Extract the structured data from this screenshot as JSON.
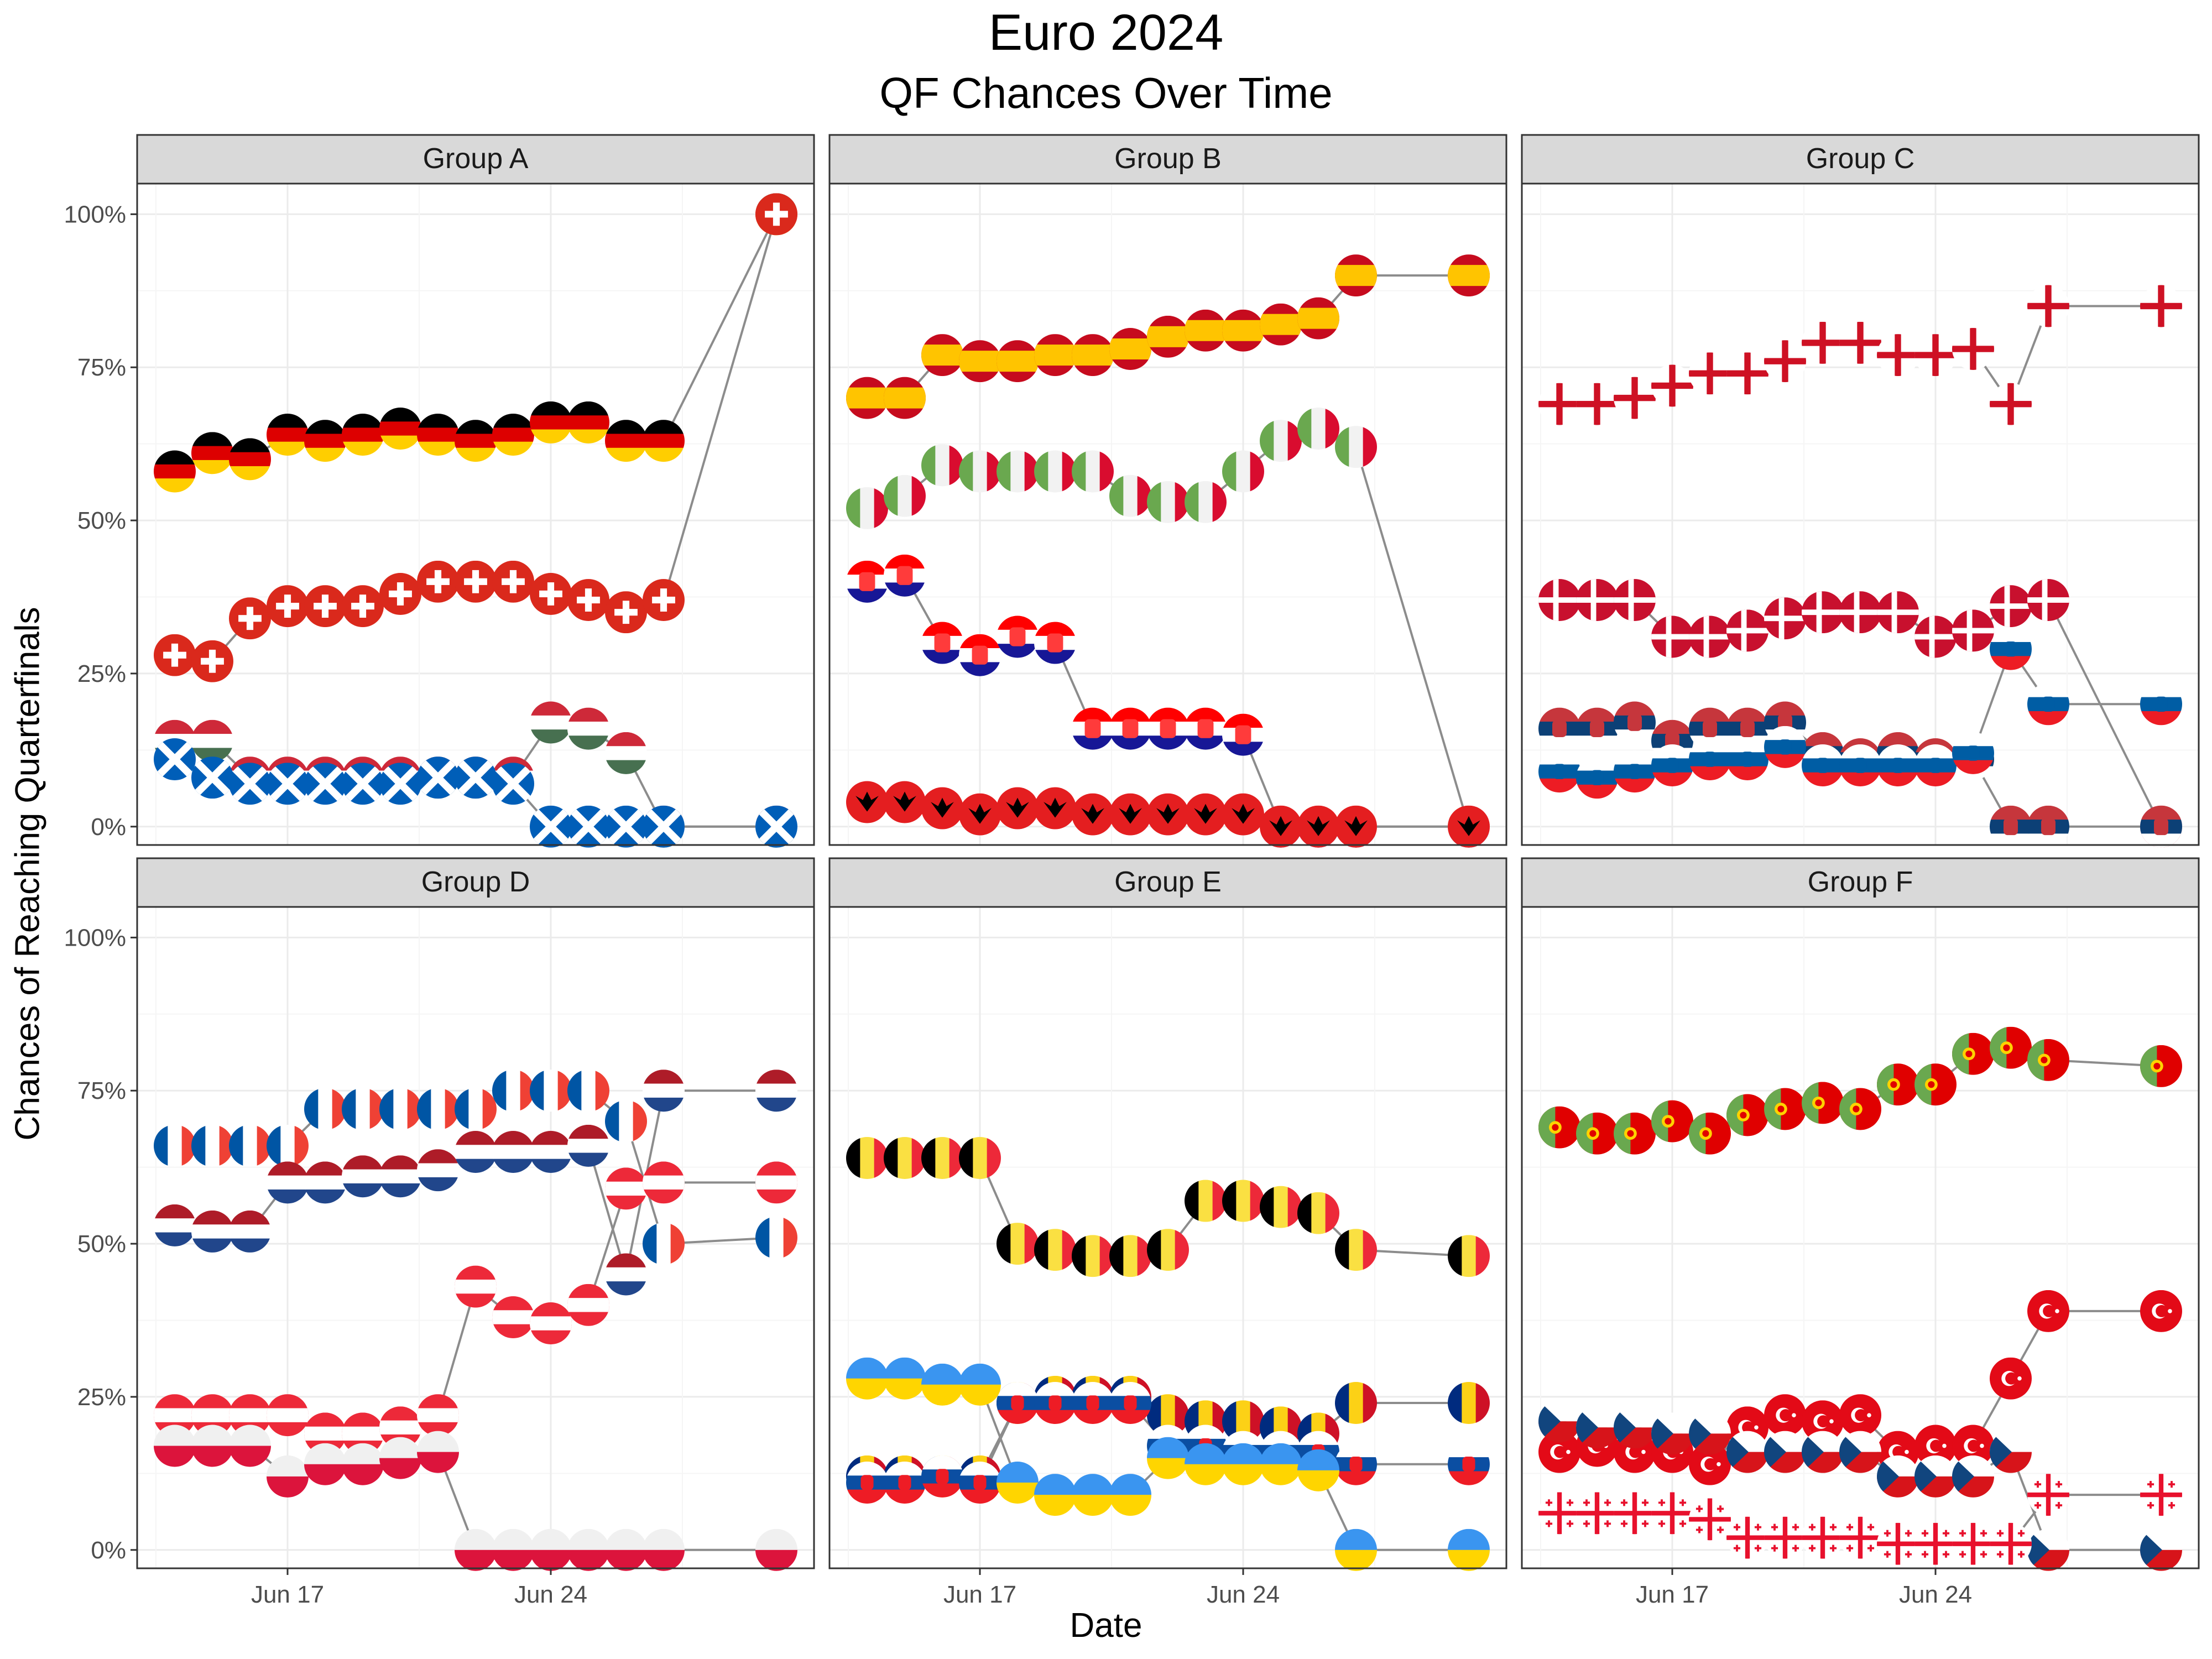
{
  "title": "Euro 2024",
  "subtitle": "QF Chances Over Time",
  "chart_data": {
    "type": "scatter",
    "title": "Euro 2024",
    "subtitle": "QF Chances Over Time",
    "xlabel": "Date",
    "ylabel": "Chances of Reaching Quarterfinals",
    "x_tick_labels": [
      "Jun 17",
      "Jun 24"
    ],
    "y_tick_labels": [
      "0%",
      "25%",
      "50%",
      "75%",
      "100%"
    ],
    "ylim": [
      -3,
      105
    ],
    "xlim": [
      "2024-06-13",
      "2024-07-01"
    ],
    "grid": true,
    "legend": "none",
    "dates": [
      "2024-06-14",
      "2024-06-15",
      "2024-06-16",
      "2024-06-17",
      "2024-06-18",
      "2024-06-19",
      "2024-06-20",
      "2024-06-21",
      "2024-06-22",
      "2024-06-23",
      "2024-06-24",
      "2024-06-25",
      "2024-06-26",
      "2024-06-27",
      "2024-06-30"
    ],
    "panels": [
      {
        "name": "Group A",
        "series": [
          {
            "team": "Germany",
            "flag": "germany",
            "values": [
              58,
              61,
              60,
              64,
              63,
              64,
              65,
              64,
              63,
              64,
              66,
              66,
              63,
              63,
              100
            ]
          },
          {
            "team": "Switzerland",
            "flag": "switzerland",
            "values": [
              28,
              27,
              34,
              36,
              36,
              36,
              38,
              40,
              40,
              40,
              38,
              37,
              35,
              37,
              100
            ]
          },
          {
            "team": "Hungary",
            "flag": "hungary",
            "values": [
              14,
              14,
              8,
              8,
              8,
              8,
              8,
              8,
              8,
              8,
              17,
              16,
              12,
              0,
              0
            ]
          },
          {
            "team": "Scotland",
            "flag": "scotland",
            "values": [
              11,
              8,
              7,
              7,
              7,
              7,
              7,
              8,
              8,
              7,
              0,
              0,
              0,
              0,
              0
            ]
          }
        ]
      },
      {
        "name": "Group B",
        "series": [
          {
            "team": "Spain",
            "flag": "spain",
            "values": [
              70,
              70,
              77,
              76,
              76,
              77,
              77,
              78,
              80,
              81,
              81,
              82,
              83,
              90,
              90
            ]
          },
          {
            "team": "Italy",
            "flag": "italy",
            "values": [
              52,
              54,
              59,
              58,
              58,
              58,
              58,
              54,
              53,
              53,
              58,
              63,
              65,
              62,
              0
            ]
          },
          {
            "team": "Croatia",
            "flag": "croatia",
            "values": [
              40,
              41,
              30,
              28,
              31,
              30,
              16,
              16,
              16,
              16,
              15,
              0,
              0,
              0,
              0
            ]
          },
          {
            "team": "Albania",
            "flag": "albania",
            "values": [
              4,
              4,
              3,
              2,
              3,
              3,
              2,
              2,
              2,
              2,
              2,
              0,
              0,
              0,
              0
            ]
          }
        ]
      },
      {
        "name": "Group C",
        "series": [
          {
            "team": "England",
            "flag": "england",
            "values": [
              69,
              69,
              70,
              72,
              74,
              74,
              76,
              79,
              79,
              77,
              77,
              78,
              69,
              85,
              85
            ]
          },
          {
            "team": "Denmark",
            "flag": "denmark",
            "values": [
              37,
              37,
              37,
              31,
              31,
              32,
              34,
              35,
              35,
              35,
              31,
              32,
              36,
              37,
              0
            ]
          },
          {
            "team": "Serbia",
            "flag": "serbia",
            "values": [
              16,
              16,
              17,
              14,
              16,
              16,
              17,
              12,
              11,
              12,
              11,
              11,
              0,
              0,
              0
            ]
          },
          {
            "team": "Slovenia",
            "flag": "slovenia",
            "values": [
              9,
              8,
              9,
              10,
              11,
              11,
              13,
              10,
              10,
              10,
              10,
              12,
              29,
              20,
              20
            ]
          }
        ]
      },
      {
        "name": "Group D",
        "series": [
          {
            "team": "France",
            "flag": "france",
            "values": [
              66,
              66,
              66,
              66,
              72,
              72,
              72,
              72,
              72,
              75,
              75,
              75,
              70,
              50,
              51
            ]
          },
          {
            "team": "Netherlands",
            "flag": "netherlands",
            "values": [
              53,
              52,
              52,
              60,
              60,
              61,
              61,
              62,
              65,
              65,
              65,
              66,
              45,
              75,
              75
            ]
          },
          {
            "team": "Austria",
            "flag": "austria",
            "values": [
              22,
              22,
              22,
              22,
              19,
              19,
              20,
              22,
              43,
              38,
              37,
              40,
              59,
              60,
              60
            ]
          },
          {
            "team": "Poland",
            "flag": "poland",
            "values": [
              17,
              17,
              17,
              12,
              14,
              14,
              15,
              16,
              0,
              0,
              0,
              0,
              0,
              0,
              0
            ]
          }
        ]
      },
      {
        "name": "Group E",
        "series": [
          {
            "team": "Belgium",
            "flag": "belgium",
            "values": [
              64,
              64,
              64,
              64,
              50,
              49,
              48,
              48,
              49,
              57,
              57,
              56,
              55,
              49,
              48
            ]
          },
          {
            "team": "Romania",
            "flag": "romania",
            "values": [
              12,
              12,
              12,
              12,
              24,
              25,
              25,
              25,
              22,
              21,
              21,
              20,
              19,
              24,
              24
            ]
          },
          {
            "team": "Slovakia",
            "flag": "slovakia",
            "values": [
              11,
              11,
              12,
              11,
              24,
              24,
              24,
              24,
              17,
              17,
              16,
              16,
              16,
              14,
              14
            ]
          },
          {
            "team": "Ukraine",
            "flag": "ukraine",
            "values": [
              28,
              28,
              27,
              27,
              11,
              9,
              9,
              9,
              15,
              14,
              14,
              14,
              13,
              0,
              0
            ]
          }
        ]
      },
      {
        "name": "Group F",
        "series": [
          {
            "team": "Portugal",
            "flag": "portugal",
            "values": [
              69,
              68,
              68,
              70,
              68,
              71,
              72,
              73,
              72,
              76,
              76,
              81,
              82,
              80,
              79
            ]
          },
          {
            "team": "Turkey",
            "flag": "turkey",
            "values": [
              16,
              17,
              16,
              16,
              14,
              20,
              22,
              21,
              22,
              16,
              17,
              17,
              28,
              39,
              39
            ]
          },
          {
            "team": "Czechia",
            "flag": "czechia",
            "values": [
              21,
              20,
              20,
              19,
              19,
              16,
              16,
              16,
              16,
              12,
              12,
              12,
              16,
              0,
              0
            ]
          },
          {
            "team": "Georgia",
            "flag": "georgia",
            "values": [
              6,
              6,
              6,
              6,
              5,
              2,
              2,
              2,
              2,
              1,
              1,
              1,
              1,
              9,
              9
            ]
          }
        ]
      }
    ]
  },
  "flag_colors": {
    "germany": [
      "#000000",
      "#dd0000",
      "#ffce00"
    ],
    "switzerland": [
      "#da291c",
      "#ffffff"
    ],
    "hungary": [
      "#ce2939",
      "#ffffff",
      "#477050"
    ],
    "scotland": [
      "#005eb8",
      "#ffffff"
    ],
    "spain": [
      "#c60b1e",
      "#ffc400"
    ],
    "italy": [
      "#6aa84f",
      "#f2f2f2",
      "#d90c2f"
    ],
    "croatia": [
      "#ff0000",
      "#ffffff",
      "#171796"
    ],
    "albania": [
      "#e41e20",
      "#000000"
    ],
    "england": [
      "#ffffff",
      "#ce1124"
    ],
    "denmark": [
      "#c8102e",
      "#ffffff"
    ],
    "serbia": [
      "#c6363c",
      "#0c4076",
      "#ffffff"
    ],
    "slovenia": [
      "#ffffff",
      "#005da4",
      "#ed1c24"
    ],
    "france": [
      "#0055a4",
      "#ffffff",
      "#ef4135"
    ],
    "netherlands": [
      "#ae1c28",
      "#ffffff",
      "#21468b"
    ],
    "austria": [
      "#ed2939",
      "#ffffff"
    ],
    "poland": [
      "#f0f0f0",
      "#dc143c"
    ],
    "belgium": [
      "#000000",
      "#fae042",
      "#ed2939"
    ],
    "romania": [
      "#002b7f",
      "#fcd116",
      "#ce1126"
    ],
    "slovakia": [
      "#ffffff",
      "#0b4ea2",
      "#ee1c25"
    ],
    "ukraine": [
      "#3a95f0",
      "#ffd500"
    ],
    "portugal": [
      "#6aa84f",
      "#e00000",
      "#ffd200"
    ],
    "turkey": [
      "#e30a17",
      "#ffffff"
    ],
    "czechia": [
      "#ffffff",
      "#d7141a",
      "#11457e"
    ],
    "georgia": [
      "#ffffff",
      "#e8112d"
    ]
  }
}
